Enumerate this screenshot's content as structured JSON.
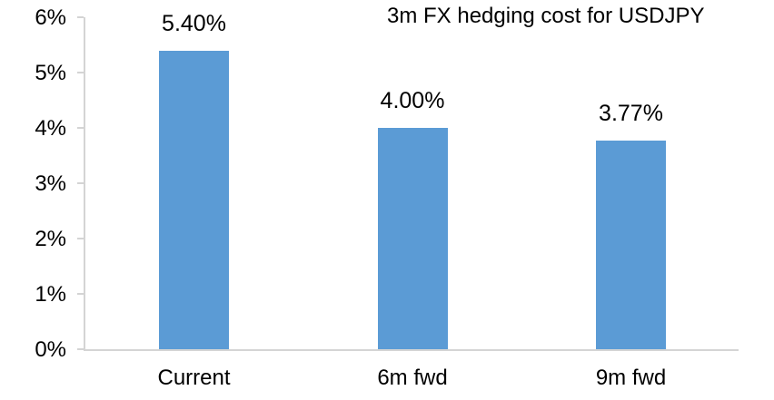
{
  "chart_data": {
    "type": "bar",
    "title": "3m FX hedging cost for USDJPY",
    "categories": [
      "Current",
      "6m fwd",
      "9m fwd"
    ],
    "values": [
      5.4,
      4.0,
      3.77
    ],
    "value_labels": [
      "5.40%",
      "4.00%",
      "3.77%"
    ],
    "ylim": [
      0,
      6
    ],
    "ytick_step": 1,
    "ytick_labels": [
      "0%",
      "1%",
      "2%",
      "3%",
      "4%",
      "5%",
      "6%"
    ],
    "xlabel": "",
    "ylabel": "",
    "grid": false,
    "legend": "none",
    "bar_color": "#5B9BD5",
    "axis_color": "#D4D4D4",
    "text_color": "#000000"
  }
}
